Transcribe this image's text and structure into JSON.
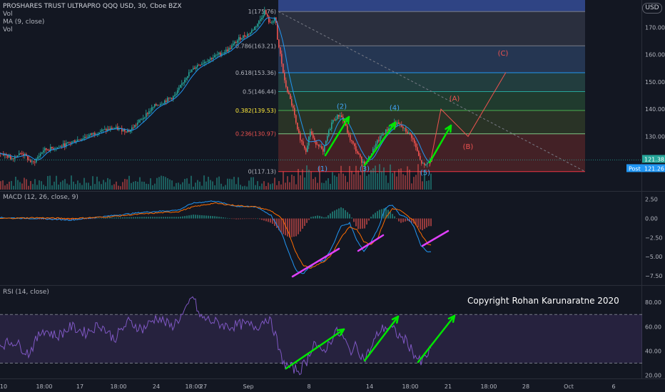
{
  "header": {
    "symbol_line": "PROSHARES TRUST ULTRAPRO QQQ USD, 30, Cboe BZX",
    "vol_top": "Vol",
    "ma": "MA (9, close)",
    "vol_bottom": "Vol",
    "currency_badge": "USD"
  },
  "price_tags": {
    "last": "121.38",
    "post_label": "Post",
    "post_value": "121.26"
  },
  "annotation": {
    "copyright": "Copyright Rohan Karunaratne 2020"
  },
  "colors": {
    "background": "#131722",
    "up": "#26a69a",
    "down": "#ef5350",
    "ma": "#2196f3",
    "macd": "#2196f3",
    "signal": "#ff6d00",
    "rsi": "#7e57c2",
    "rsi_band": "#7e57c2",
    "arrows": "#00e600",
    "divergence": "#e040fb",
    "wave_impulse": "#42a5f5",
    "wave_corrective": "#ef5350",
    "fib_label": "#ffeb3b"
  },
  "chart_data": [
    {
      "type": "candlestick",
      "title": "PROSHARES TRUST ULTRAPRO QQQ USD, 30, Cboe BZX",
      "ylim": [
        110,
        180
      ],
      "y_ticks": [
        130,
        140,
        150,
        160,
        170
      ],
      "y_tick_labels": [
        "130.00",
        "140.00",
        "150.00",
        "160.00",
        "170.00"
      ],
      "x_tick_labels": [
        "10",
        "18:00",
        "17",
        "18:00",
        "24",
        "18:00",
        "27",
        "Sep",
        "8",
        "14",
        "18:00",
        "21",
        "18:00",
        "28",
        "Oct",
        "6"
      ],
      "overlays": [
        "MA (9, close)",
        "Vol"
      ],
      "price_path": [
        [
          0,
          124
        ],
        [
          15,
          122
        ],
        [
          30,
          124
        ],
        [
          45,
          120
        ],
        [
          60,
          125
        ],
        [
          80,
          126
        ],
        [
          100,
          128
        ],
        [
          120,
          130
        ],
        [
          140,
          132
        ],
        [
          160,
          133
        ],
        [
          180,
          132
        ],
        [
          200,
          137
        ],
        [
          215,
          141
        ],
        [
          230,
          143
        ],
        [
          245,
          145
        ],
        [
          260,
          152
        ],
        [
          275,
          156
        ],
        [
          290,
          158
        ],
        [
          305,
          160
        ],
        [
          320,
          162
        ],
        [
          335,
          166
        ],
        [
          350,
          168
        ],
        [
          362,
          172
        ],
        [
          370,
          176
        ],
        [
          378,
          171
        ],
        [
          385,
          174
        ],
        [
          388,
          165
        ],
        [
          392,
          160
        ],
        [
          398,
          150
        ],
        [
          404,
          145
        ],
        [
          410,
          140
        ],
        [
          416,
          132
        ],
        [
          422,
          128
        ],
        [
          428,
          125
        ],
        [
          434,
          132
        ],
        [
          440,
          128
        ],
        [
          446,
          127
        ],
        [
          452,
          124
        ],
        [
          458,
          130
        ],
        [
          464,
          135
        ],
        [
          470,
          137
        ],
        [
          476,
          138
        ],
        [
          482,
          135
        ],
        [
          488,
          130
        ],
        [
          494,
          127
        ],
        [
          500,
          124
        ],
        [
          506,
          121
        ],
        [
          512,
          120
        ],
        [
          520,
          124
        ],
        [
          528,
          128
        ],
        [
          536,
          131
        ],
        [
          544,
          133
        ],
        [
          552,
          135
        ],
        [
          560,
          134
        ],
        [
          568,
          132
        ],
        [
          576,
          130
        ],
        [
          582,
          126
        ],
        [
          588,
          121
        ],
        [
          594,
          119
        ],
        [
          600,
          121
        ],
        [
          604,
          121.4
        ]
      ],
      "fibonacci": {
        "levels": [
          {
            "ratio": "1",
            "price": 175.76
          },
          {
            "ratio": "0.786",
            "price": 163.21
          },
          {
            "ratio": "0.618",
            "price": 153.36
          },
          {
            "ratio": "0.5",
            "price": 146.44
          },
          {
            "ratio": "0.382",
            "price": 139.53
          },
          {
            "ratio": "0.236",
            "price": 130.97
          },
          {
            "ratio": "0",
            "price": 117.13
          }
        ],
        "labels": [
          "1(175.76)",
          "0.786(163.21)",
          "0.618(153.36)",
          "0.5(146.44)",
          "0.382(139.53)",
          "0.236(130.97)",
          "0(117.13)"
        ]
      },
      "elliott_waves": [
        {
          "label": "(1)",
          "price": 120.5
        },
        {
          "label": "(2)",
          "price": 137.5
        },
        {
          "label": "(3)",
          "price": 120.5
        },
        {
          "label": "(4)",
          "price": 137.0
        },
        {
          "label": "(5)",
          "price": 119.0
        }
      ],
      "corrective_waves": [
        {
          "label": "(A)",
          "price": 141.0
        },
        {
          "label": "(B)",
          "price": 128.0
        },
        {
          "label": "(C)",
          "price": 157.5
        }
      ]
    },
    {
      "type": "line",
      "title": "MACD (12, 26, close, 9)",
      "ylim": [
        -8.7,
        3.4
      ],
      "y_ticks": [
        2.5,
        0,
        -2.5,
        -5,
        -7.5
      ],
      "y_tick_labels": [
        "2.50",
        "0.00",
        "−2.50",
        "−5.00",
        "−7.50"
      ],
      "series": [
        {
          "name": "MACD",
          "path": [
            [
              0,
              0.1
            ],
            [
              50,
              0
            ],
            [
              100,
              -0.2
            ],
            [
              150,
              0.3
            ],
            [
              200,
              0.8
            ],
            [
              250,
              1.1
            ],
            [
              270,
              2.0
            ],
            [
              300,
              2.3
            ],
            [
              330,
              1.6
            ],
            [
              360,
              1.5
            ],
            [
              380,
              0.4
            ],
            [
              395,
              -2.0
            ],
            [
              405,
              -4.5
            ],
            [
              415,
              -6.8
            ],
            [
              425,
              -7.2
            ],
            [
              435,
              -6.3
            ],
            [
              445,
              -5.6
            ],
            [
              455,
              -5.5
            ],
            [
              465,
              -3.8
            ],
            [
              478,
              -1.0
            ],
            [
              490,
              -0.6
            ],
            [
              500,
              -2.8
            ],
            [
              510,
              -4.3
            ],
            [
              520,
              -3.0
            ],
            [
              530,
              -1.3
            ],
            [
              540,
              1.4
            ],
            [
              550,
              1.8
            ],
            [
              560,
              0.5
            ],
            [
              570,
              0.1
            ],
            [
              580,
              -1.0
            ],
            [
              590,
              -3.6
            ],
            [
              600,
              -4.4
            ]
          ]
        },
        {
          "name": "Signal",
          "path": [
            [
              0,
              0
            ],
            [
              50,
              0.1
            ],
            [
              100,
              0
            ],
            [
              150,
              0.2
            ],
            [
              200,
              0.6
            ],
            [
              250,
              0.9
            ],
            [
              270,
              1.5
            ],
            [
              300,
              2.0
            ],
            [
              330,
              1.7
            ],
            [
              360,
              1.5
            ],
            [
              380,
              1.0
            ],
            [
              395,
              0
            ],
            [
              405,
              -2.0
            ],
            [
              415,
              -4.5
            ],
            [
              425,
              -6.1
            ],
            [
              435,
              -6.5
            ],
            [
              445,
              -6.0
            ],
            [
              455,
              -5.6
            ],
            [
              465,
              -4.7
            ],
            [
              478,
              -2.5
            ],
            [
              490,
              -1.1
            ],
            [
              500,
              -1.4
            ],
            [
              510,
              -3.0
            ],
            [
              520,
              -3.4
            ],
            [
              530,
              -2.4
            ],
            [
              540,
              0
            ],
            [
              550,
              1.3
            ],
            [
              560,
              1.1
            ],
            [
              570,
              0.4
            ],
            [
              580,
              -0.3
            ],
            [
              590,
              -2.0
            ],
            [
              600,
              -3.4
            ]
          ]
        }
      ]
    },
    {
      "type": "line",
      "title": "RSI (14, close)",
      "ylim": [
        18,
        93
      ],
      "y_ticks": [
        80,
        60,
        40,
        20
      ],
      "y_tick_labels": [
        "80.00",
        "60.00",
        "40.00",
        "20.00"
      ],
      "band": [
        30,
        70
      ],
      "series": [
        {
          "name": "RSI",
          "path": [
            [
              0,
              45
            ],
            [
              20,
              48
            ],
            [
              40,
              38
            ],
            [
              60,
              58
            ],
            [
              80,
              52
            ],
            [
              100,
              60
            ],
            [
              120,
              55
            ],
            [
              140,
              62
            ],
            [
              160,
              50
            ],
            [
              180,
              64
            ],
            [
              200,
              58
            ],
            [
              220,
              68
            ],
            [
              240,
              60
            ],
            [
              260,
              72
            ],
            [
              270,
              86
            ],
            [
              280,
              68
            ],
            [
              300,
              64
            ],
            [
              320,
              60
            ],
            [
              340,
              62
            ],
            [
              360,
              60
            ],
            [
              375,
              68
            ],
            [
              385,
              56
            ],
            [
              392,
              38
            ],
            [
              400,
              28
            ],
            [
              410,
              26
            ],
            [
              420,
              24
            ],
            [
              430,
              32
            ],
            [
              440,
              48
            ],
            [
              450,
              38
            ],
            [
              460,
              45
            ],
            [
              470,
              56
            ],
            [
              480,
              52
            ],
            [
              490,
              40
            ],
            [
              500,
              44
            ],
            [
              510,
              33
            ],
            [
              520,
              42
            ],
            [
              530,
              55
            ],
            [
              540,
              60
            ],
            [
              550,
              58
            ],
            [
              560,
              52
            ],
            [
              570,
              48
            ],
            [
              580,
              38
            ],
            [
              590,
              30
            ],
            [
              600,
              38
            ],
            [
              604,
              42
            ]
          ]
        }
      ]
    }
  ]
}
